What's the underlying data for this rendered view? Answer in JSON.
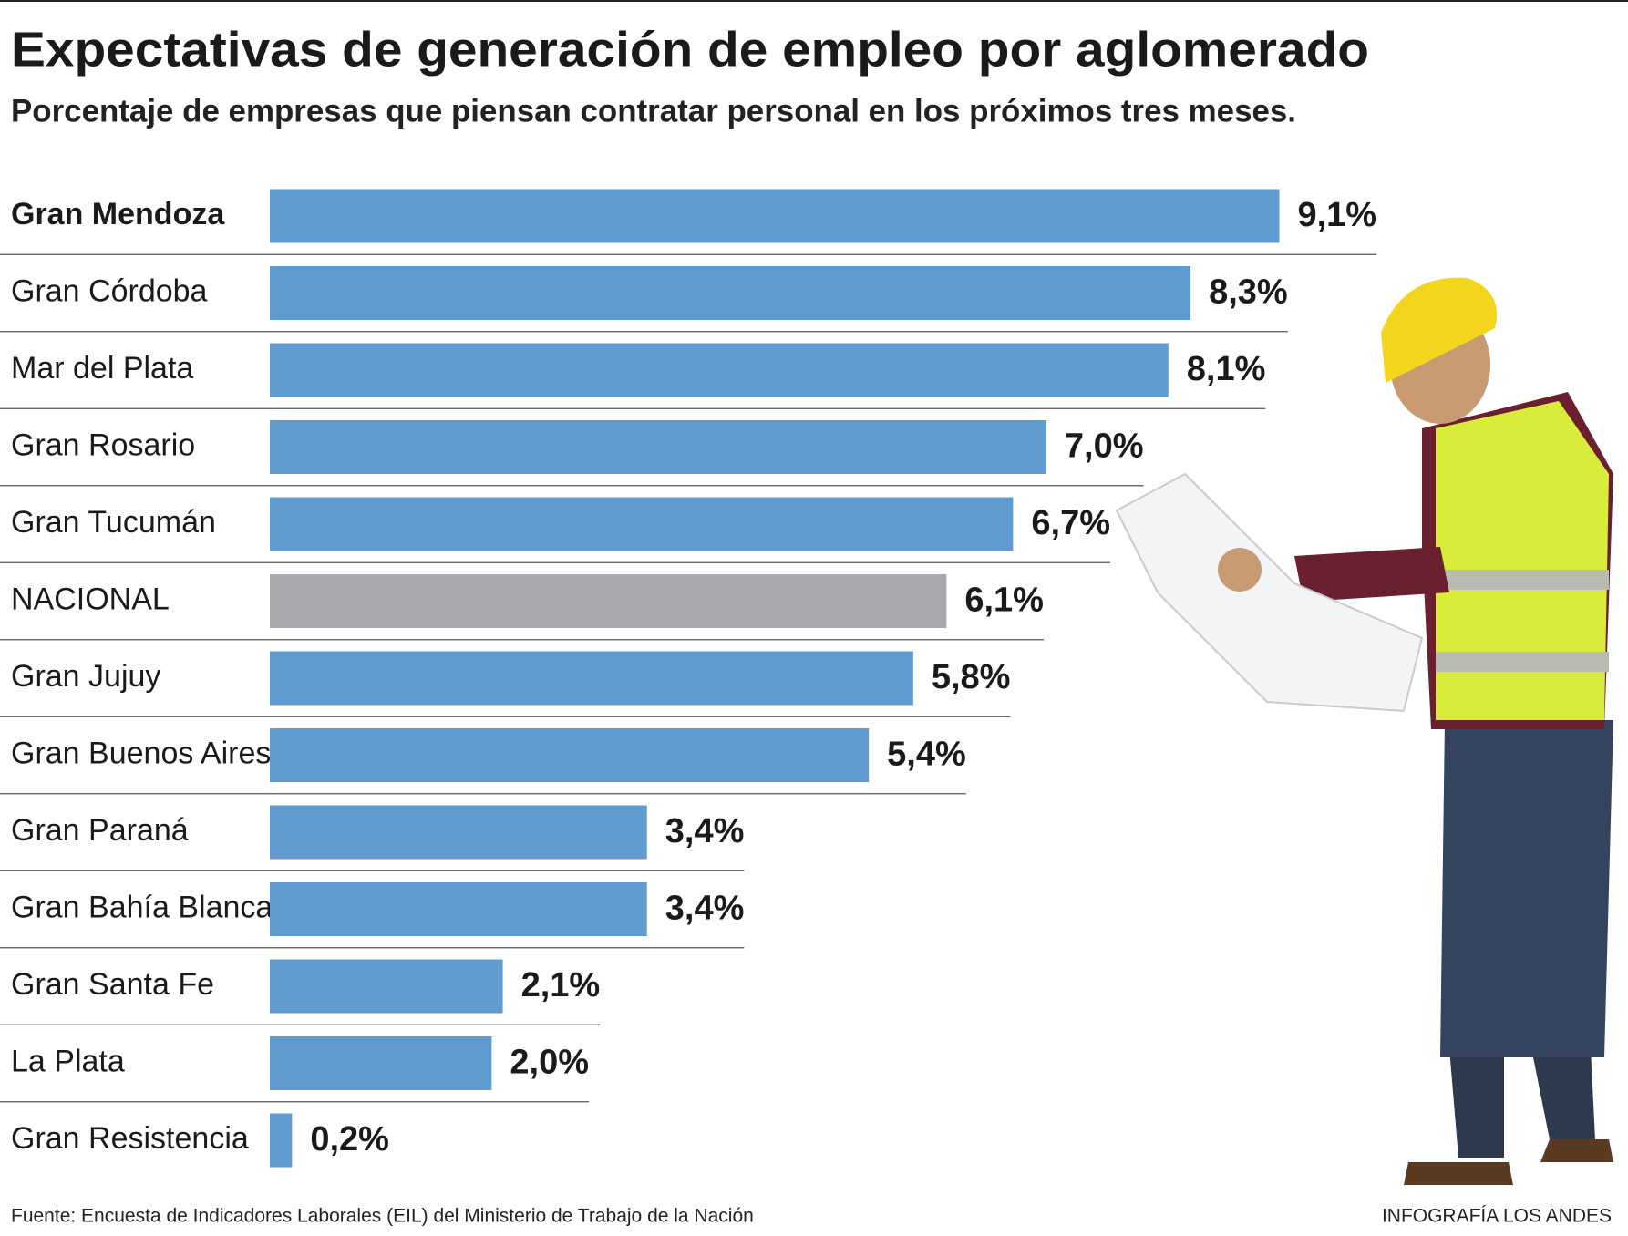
{
  "chart_data": {
    "type": "bar",
    "orientation": "horizontal",
    "title": "Expectativas de generación de empleo por aglomerado",
    "subtitle": "Porcentaje de empresas que piensan contratar personal en los próximos tres meses.",
    "categories": [
      "Gran Mendoza",
      "Gran Córdoba",
      "Mar del Plata",
      "Gran Rosario",
      "Gran Tucumán",
      "NACIONAL",
      "Gran Jujuy",
      "Gran Buenos Aires",
      "Gran Paraná",
      "Gran Bahía Blanca",
      "Gran Santa Fe",
      "La Plata",
      "Gran Resistencia"
    ],
    "values": [
      9.1,
      8.3,
      8.1,
      7.0,
      6.7,
      6.1,
      5.8,
      5.4,
      3.4,
      3.4,
      2.1,
      2.0,
      0.2
    ],
    "value_labels": [
      "9,1%",
      "8,3%",
      "8,1%",
      "7,0%",
      "6,7%",
      "6,1%",
      "5,8%",
      "5,4%",
      "3,4%",
      "3,4%",
      "2,1%",
      "2,0%",
      "0,2%"
    ],
    "colors": [
      "#5f9bd0",
      "#5f9bd0",
      "#5f9bd0",
      "#5f9bd0",
      "#5f9bd0",
      "#a8a9ad",
      "#5f9bd0",
      "#5f9bd0",
      "#5f9bd0",
      "#5f9bd0",
      "#5f9bd0",
      "#5f9bd0",
      "#5f9bd0"
    ],
    "highlight": "Gran Mendoza",
    "source": "Fuente: Encuesta de Indicadores Laborales (EIL) del Ministerio de Trabajo de la Nación",
    "credit": "INFOGRAFÍA LOS ANDES"
  }
}
